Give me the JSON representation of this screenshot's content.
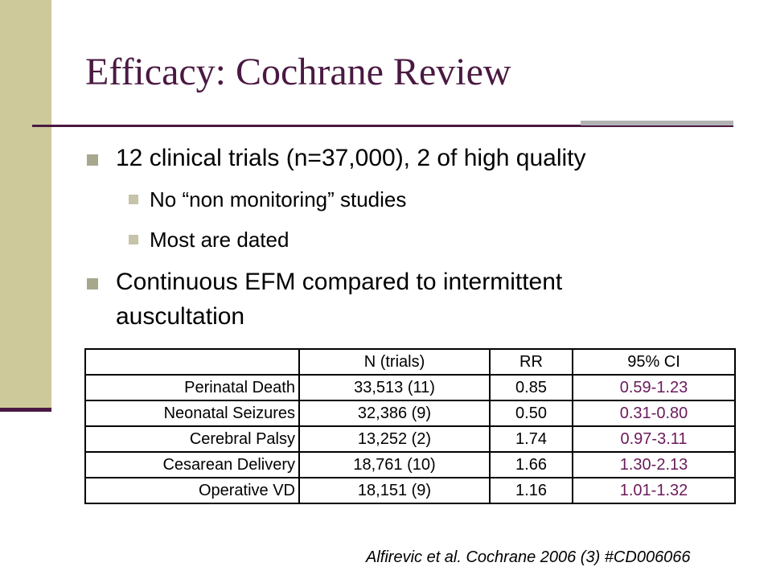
{
  "title": "Efficacy: Cochrane Review",
  "bullets": {
    "b1": "12 clinical trials (n=37,000), 2 of high quality",
    "sub1": "No “non monitoring” studies",
    "sub2": "Most are dated",
    "b2_line1": "Continuous EFM compared to intermittent",
    "b2_line2": "auscultation"
  },
  "table": {
    "headers": [
      "",
      "N (trials)",
      "RR",
      "95% CI"
    ],
    "rows": [
      [
        "Perinatal Death",
        "33,513 (11)",
        "0.85",
        "0.59-1.23"
      ],
      [
        "Neonatal Seizures",
        "32,386 (9)",
        "0.50",
        "0.31-0.80"
      ],
      [
        "Cerebral Palsy",
        "13,252 (2)",
        "1.74",
        "0.97-3.11"
      ],
      [
        "Cesarean Delivery",
        "18,761 (10)",
        "1.66",
        "1.30-2.13"
      ],
      [
        "Operative VD",
        "18,151 (9)",
        "1.16",
        "1.01-1.32"
      ]
    ]
  },
  "citation": "Alfirevic et al. Cochrane 2006 (3) #CD006066",
  "colors": {
    "accent": "#4a1942",
    "sidebar": "#cdc99a",
    "ci_text": "#6b1a5a"
  }
}
